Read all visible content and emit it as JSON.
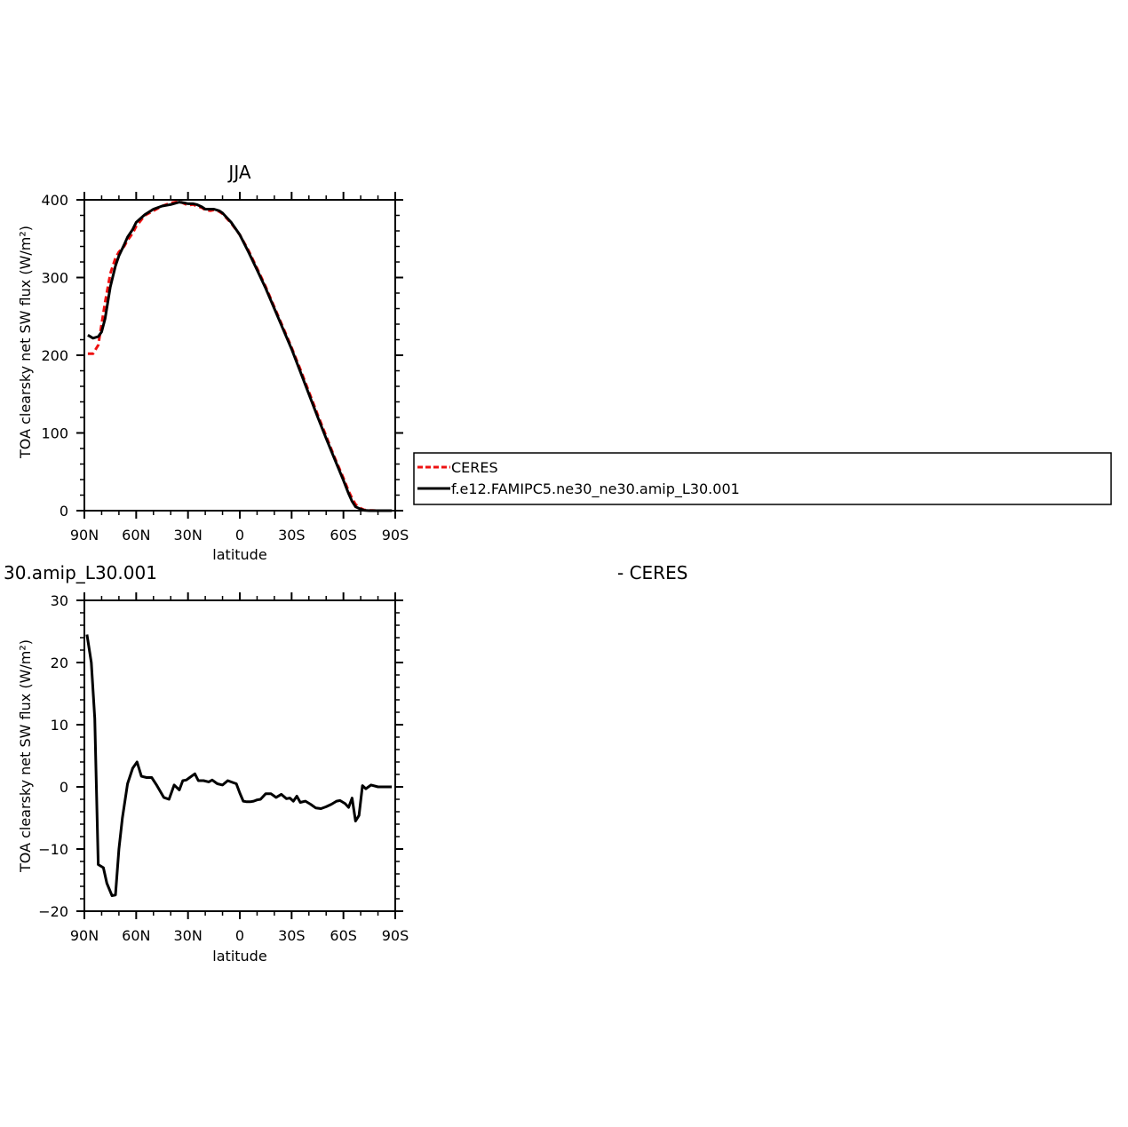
{
  "chart_data": [
    {
      "type": "line",
      "title": "JJA",
      "xlabel": "latitude",
      "ylabel": "TOA clearsky net SW flux (W/m²)",
      "xlim": [
        90,
        -90
      ],
      "ylim": [
        0,
        400
      ],
      "xticks": [
        90,
        60,
        30,
        0,
        -30,
        -60,
        -90
      ],
      "xtick_labels": [
        "90N",
        "60N",
        "30N",
        "0",
        "30S",
        "60S",
        "90S"
      ],
      "yticks": [
        0,
        100,
        200,
        300,
        400
      ],
      "ytick_labels": [
        "0",
        "100",
        "200",
        "300",
        "400"
      ],
      "grid": false,
      "legend": {
        "placement": "right",
        "entries": [
          "CERES",
          "f.e12.FAMIPC5.ne30_ne30.amip_L30.001"
        ]
      },
      "series": [
        {
          "name": "CERES",
          "color": "#ee1111",
          "dash": "dashed",
          "x": [
            88,
            85,
            82,
            80,
            78,
            75,
            72,
            70,
            67,
            65,
            62,
            60,
            55,
            50,
            45,
            40,
            35,
            32,
            30,
            27,
            25,
            22,
            20,
            17,
            15,
            12,
            10,
            5,
            0,
            -5,
            -10,
            -15,
            -20,
            -25,
            -30,
            -35,
            -40,
            -45,
            -50,
            -55,
            -60,
            -63,
            -65,
            -67,
            -70,
            -72,
            -75,
            -80,
            -85,
            -88
          ],
          "values": [
            202,
            202,
            213,
            240,
            268,
            305,
            325,
            333,
            340,
            348,
            357,
            366,
            380,
            386,
            392,
            396,
            398,
            395,
            393,
            394,
            392,
            390,
            387,
            386,
            387,
            385,
            382,
            370,
            355,
            335,
            312,
            288,
            262,
            236,
            210,
            182,
            153,
            124,
            96,
            68,
            42,
            25,
            16,
            8,
            3,
            1,
            0.5,
            0,
            0,
            0
          ]
        },
        {
          "name": "f.e12.FAMIPC5.ne30_ne30.amip_L30.001",
          "color": "#000000",
          "dash": "solid",
          "x": [
            88,
            85,
            82,
            80,
            78,
            75,
            72,
            70,
            67,
            65,
            62,
            60,
            55,
            50,
            45,
            40,
            35,
            32,
            30,
            27,
            25,
            22,
            20,
            17,
            15,
            12,
            10,
            5,
            0,
            -5,
            -10,
            -15,
            -20,
            -25,
            -30,
            -35,
            -40,
            -45,
            -50,
            -55,
            -60,
            -63,
            -65,
            -67,
            -70,
            -72,
            -75,
            -80,
            -85,
            -88
          ],
          "values": [
            226,
            222,
            224,
            230,
            247,
            288,
            315,
            328,
            342,
            352,
            362,
            371,
            381,
            388,
            392,
            394,
            397,
            396,
            395,
            395,
            394,
            391,
            388,
            388,
            388,
            386,
            383,
            371,
            355,
            333,
            310,
            286,
            260,
            234,
            208,
            179,
            150,
            121,
            93,
            66,
            39,
            22,
            12,
            5,
            2,
            0.5,
            0,
            0,
            0,
            0
          ]
        }
      ]
    },
    {
      "type": "line",
      "title": "30.amip_L30.001",
      "title_right": "- CERES",
      "xlabel": "latitude",
      "ylabel": "TOA clearsky net SW flux (W/m²)",
      "xlim": [
        90,
        -90
      ],
      "ylim": [
        -20,
        30
      ],
      "xticks": [
        90,
        60,
        30,
        0,
        -30,
        -60,
        -90
      ],
      "xtick_labels": [
        "90N",
        "60N",
        "30N",
        "0",
        "30S",
        "60S",
        "90S"
      ],
      "yticks": [
        -20,
        -10,
        0,
        10,
        20,
        30
      ],
      "ytick_labels": [
        "−20",
        "−10",
        "0",
        "10",
        "20",
        "30"
      ],
      "grid": false,
      "series": [
        {
          "color": "#000000",
          "x": [
            88.5,
            86,
            84,
            82,
            79,
            77,
            74,
            72,
            70,
            68,
            65,
            62,
            59.5,
            57,
            54,
            51,
            48,
            44,
            41,
            38,
            35,
            33,
            31,
            29,
            26,
            24,
            21,
            18,
            16,
            13,
            10,
            7,
            4,
            2,
            0,
            -2,
            -4,
            -6,
            -8,
            -10,
            -12,
            -15,
            -18,
            -21,
            -24,
            -27,
            -29,
            -31,
            -33,
            -35,
            -38,
            -41,
            -44,
            -47,
            -50,
            -53,
            -56,
            -58,
            -61,
            -63,
            -65,
            -67,
            -69,
            -71,
            -73,
            -76,
            -80,
            -85,
            -88
          ],
          "values": [
            24.5,
            20,
            11,
            -12.5,
            -13,
            -15.5,
            -17.5,
            -17.4,
            -10,
            -5,
            0.5,
            3,
            4,
            1.7,
            1.5,
            1.5,
            0.2,
            -1.7,
            -2,
            0.3,
            -0.5,
            1,
            1.1,
            1.5,
            2.1,
            1,
            1,
            0.8,
            1.1,
            0.5,
            0.3,
            1,
            0.7,
            0.5,
            -1,
            -2.3,
            -2.4,
            -2.4,
            -2.3,
            -2.1,
            -2,
            -1.1,
            -1.1,
            -1.7,
            -1.2,
            -1.9,
            -1.8,
            -2.3,
            -1.5,
            -2.5,
            -2.3,
            -2.8,
            -3.4,
            -3.5,
            -3.2,
            -2.8,
            -2.3,
            -2.2,
            -2.7,
            -3.3,
            -1.8,
            -5.5,
            -4.6,
            0.2,
            -0.3,
            0.3,
            0,
            0,
            0
          ]
        }
      ]
    }
  ]
}
